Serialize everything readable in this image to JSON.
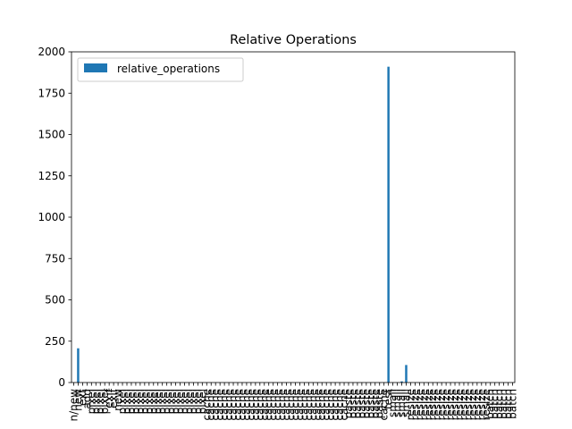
{
  "chart_data": {
    "type": "bar",
    "title": "Relative Operations",
    "xlabel": "",
    "ylabel": "",
    "ylim": [
      0,
      2000
    ],
    "yticks": [
      0,
      250,
      500,
      750,
      1000,
      1250,
      1500,
      1750,
      2000
    ],
    "grid": false,
    "legend": {
      "placement": "top-left"
    },
    "categories": [
      "n/new",
      "new",
      "ext",
      "add",
      "pixel",
      "pixel",
      "pixel",
      "pixel",
      "exif",
      "exif",
      "new",
      "pixel",
      "pixel",
      "pixel",
      "pixel",
      "pixel",
      "pixel",
      "pixel",
      "pixel",
      "pixel",
      "pixel",
      "pixel",
      "pixel",
      "pixel",
      "pixel",
      "pixel",
      "pixel",
      "pixel",
      "pixel",
      "pixel",
      "cache",
      "cache",
      "cache",
      "cache",
      "cache",
      "cache",
      "cache",
      "cache",
      "cache",
      "cache",
      "cache",
      "cache",
      "cache",
      "cache",
      "cache",
      "cache",
      "cache",
      "cache",
      "cache",
      "cache",
      "cache",
      "cache",
      "cache",
      "cache",
      "cache",
      "cache",
      "cache",
      "cache",
      "cache",
      "cache",
      "cache",
      "cache",
      "paste",
      "paste",
      "paste",
      "paste",
      "paste",
      "paste",
      "paste",
      "paste",
      "cache",
      "test",
      "small",
      "small",
      "small",
      "small",
      "resize",
      "resize",
      "resize",
      "resize",
      "resize",
      "resize",
      "resize",
      "resize",
      "resize",
      "resize",
      "resize",
      "resize",
      "resize",
      "resize",
      "resize",
      "resize",
      "resize",
      "resize",
      "batch",
      "batch",
      "batch",
      "batch",
      "batch",
      "batch"
    ],
    "series": [
      {
        "name": "relative_operations",
        "color": "#1f77b4",
        "values": [
          0,
          207,
          0,
          0,
          0,
          0,
          0,
          0,
          0,
          0,
          0,
          0,
          0,
          0,
          0,
          0,
          0,
          0,
          0,
          0,
          0,
          0,
          0,
          0,
          0,
          0,
          0,
          0,
          0,
          0,
          0,
          0,
          0,
          0,
          0,
          0,
          0,
          0,
          0,
          0,
          0,
          0,
          0,
          0,
          0,
          0,
          0,
          0,
          0,
          0,
          0,
          0,
          0,
          0,
          0,
          0,
          0,
          0,
          0,
          0,
          0,
          0,
          0,
          0,
          0,
          0,
          0,
          0,
          0,
          0,
          0,
          1910,
          0,
          0,
          7,
          106,
          0,
          0,
          0,
          0,
          0,
          0,
          0,
          0,
          0,
          0,
          0,
          0,
          0,
          0,
          0,
          0,
          0,
          0,
          0,
          0,
          0,
          0,
          0,
          0
        ]
      }
    ]
  }
}
